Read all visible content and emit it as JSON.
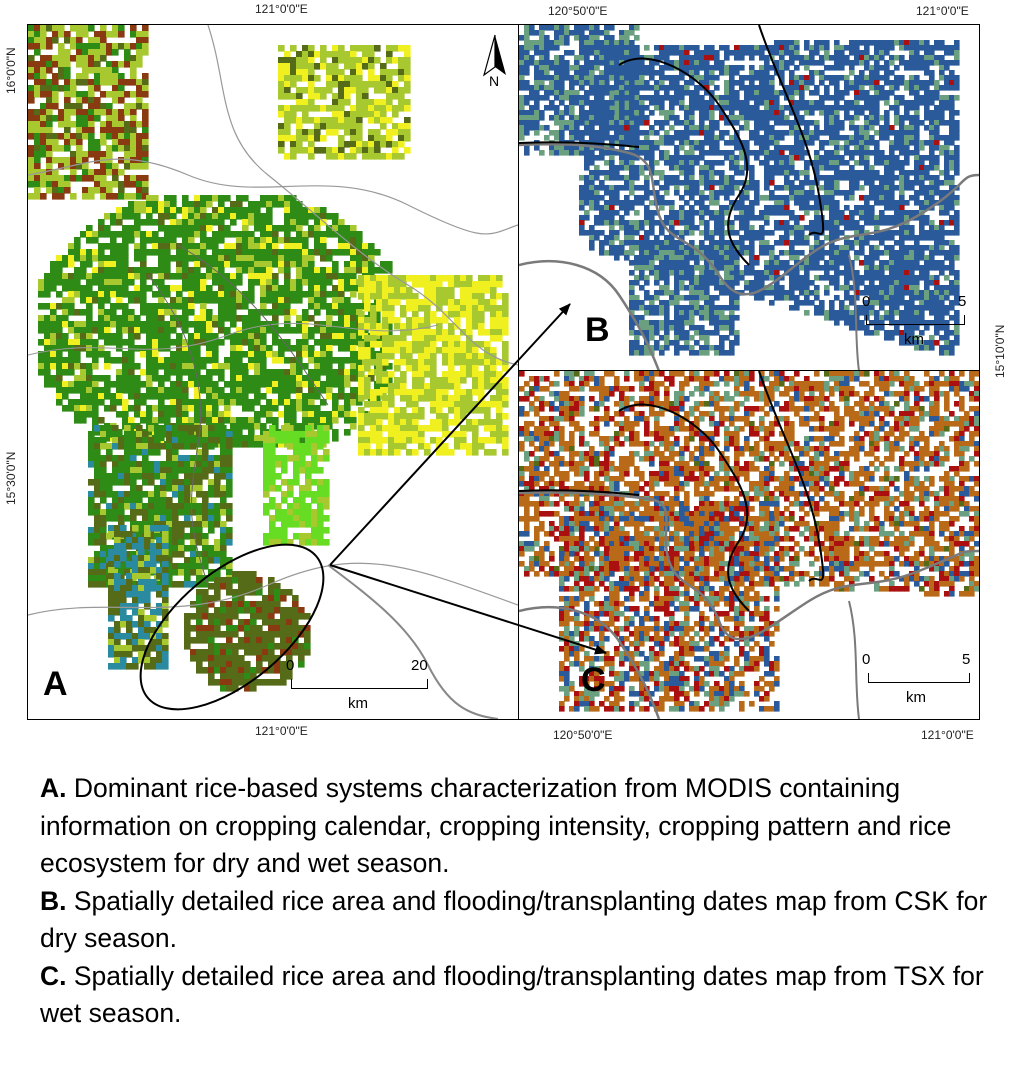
{
  "coords": {
    "top_a": "121°0'0\"E",
    "top_b_left": "120°50'0\"E",
    "top_b_right": "121°0'0\"E",
    "bottom_a": "121°0'0\"E",
    "bottom_c_left": "120°50'0\"E",
    "bottom_c_right": "121°0'0\"E",
    "left_top": "16°0'0\"N",
    "left_mid": "15°30'0\"N",
    "right_mid": "15°10'0\"N"
  },
  "panels": {
    "a": {
      "letter": "A",
      "scale_start": "0",
      "scale_end": "20",
      "scale_unit": "km",
      "north": "N"
    },
    "b": {
      "letter": "B",
      "scale_start": "0",
      "scale_end": "5",
      "scale_unit": "km"
    },
    "c": {
      "letter": "C",
      "scale_start": "0",
      "scale_end": "5",
      "scale_unit": "km"
    }
  },
  "colors": {
    "dark_green": "#2e8b16",
    "olive": "#556b18",
    "light_green": "#a8c830",
    "bright_green": "#66dd22",
    "yellow": "#f0f020",
    "brown": "#8a3a10",
    "teal": "#2a8aa0",
    "blue": "#2a5a9a",
    "orange_brown": "#b86a18",
    "red": "#aa1010",
    "sage": "#6aa080"
  },
  "caption": {
    "a_label": "A.",
    "a_text": " Dominant rice-based systems characterization from MODIS containing information on cropping calendar, cropping intensity, cropping pattern and rice ecosystem for dry and wet season.",
    "b_label": "B.",
    "b_text": " Spatially detailed rice area and flooding/transplanting dates map from CSK for dry season.",
    "c_label": "C.",
    "c_text": " Spatially detailed rice area and flooding/transplanting dates map from TSX for wet season."
  }
}
